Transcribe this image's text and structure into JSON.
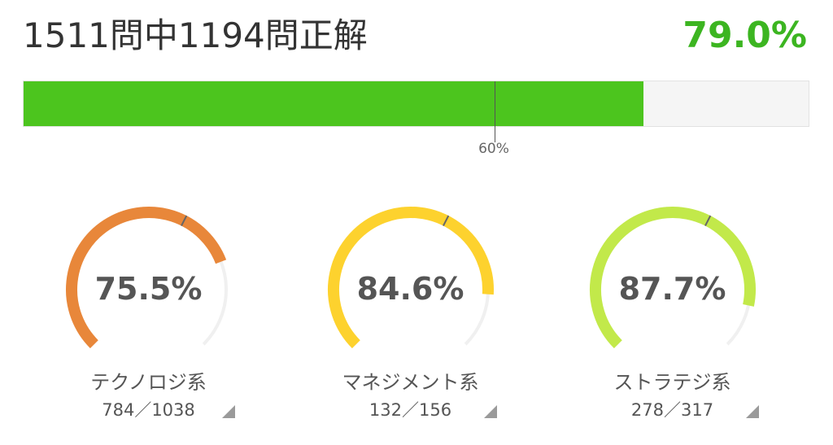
{
  "summary": {
    "text": "1511問中1194問正解",
    "percent_label": "79.0%",
    "percent": 79.0,
    "threshold_percent": 60,
    "threshold_label": "60%"
  },
  "colors": {
    "summary_bar": "#4cc51e",
    "summary_percent": "#3cb521",
    "track": "#f0f0f0"
  },
  "categories": [
    {
      "name": "テクノロジ系",
      "percent_label": "75.5%",
      "percent": 75.5,
      "count": "784／1038",
      "color": "#e8873a"
    },
    {
      "name": "マネジメント系",
      "percent_label": "84.6%",
      "percent": 84.6,
      "count": "132／156",
      "color": "#fdd22e"
    },
    {
      "name": "ストラテジ系",
      "percent_label": "87.7%",
      "percent": 87.7,
      "count": "278／317",
      "color": "#c2e94a"
    }
  ]
}
